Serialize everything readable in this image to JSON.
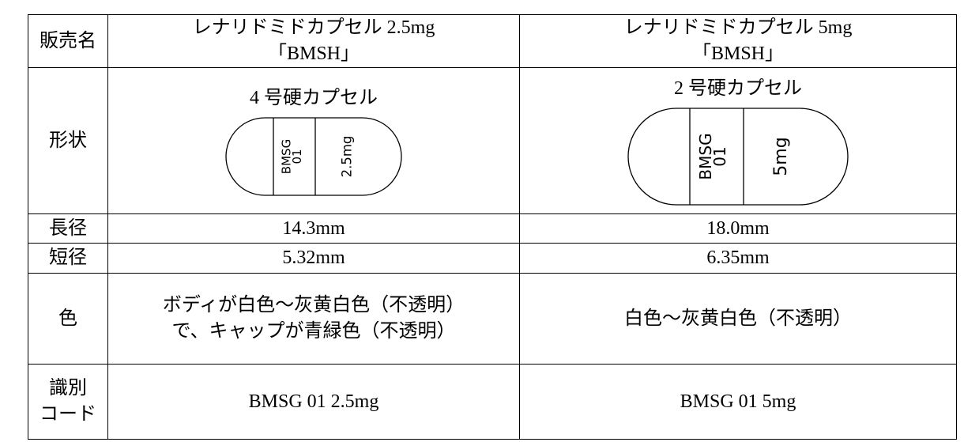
{
  "table": {
    "rows": [
      {
        "label": "販売名",
        "cells": [
          [
            "レナリドミドカプセル 2.5mg",
            "「BMSH」"
          ],
          [
            "レナリドミドカプセル 5mg",
            "「BMSH」"
          ]
        ]
      },
      {
        "label": "形状",
        "cells": [
          {
            "caption": "4 号硬カプセル",
            "imprint": [
              "BMSG",
              "01",
              "2.5mg"
            ]
          },
          {
            "caption": "2 号硬カプセル",
            "imprint": [
              "BMSG",
              "01",
              "5mg"
            ]
          }
        ]
      },
      {
        "label": "長径",
        "cells": [
          "14.3mm",
          "18.0mm"
        ]
      },
      {
        "label": "短径",
        "cells": [
          "5.32mm",
          "6.35mm"
        ]
      },
      {
        "label": "色",
        "cells": [
          "ボディが白色～灰黄白色（不透明）で、キャップが青緑色（不透明）",
          "白色～灰黄白色（不透明）"
        ]
      },
      {
        "label": [
          "識別",
          "コード"
        ],
        "cells": [
          "BMSG 01 2.5mg",
          "BMSG 01 5mg"
        ]
      }
    ]
  }
}
